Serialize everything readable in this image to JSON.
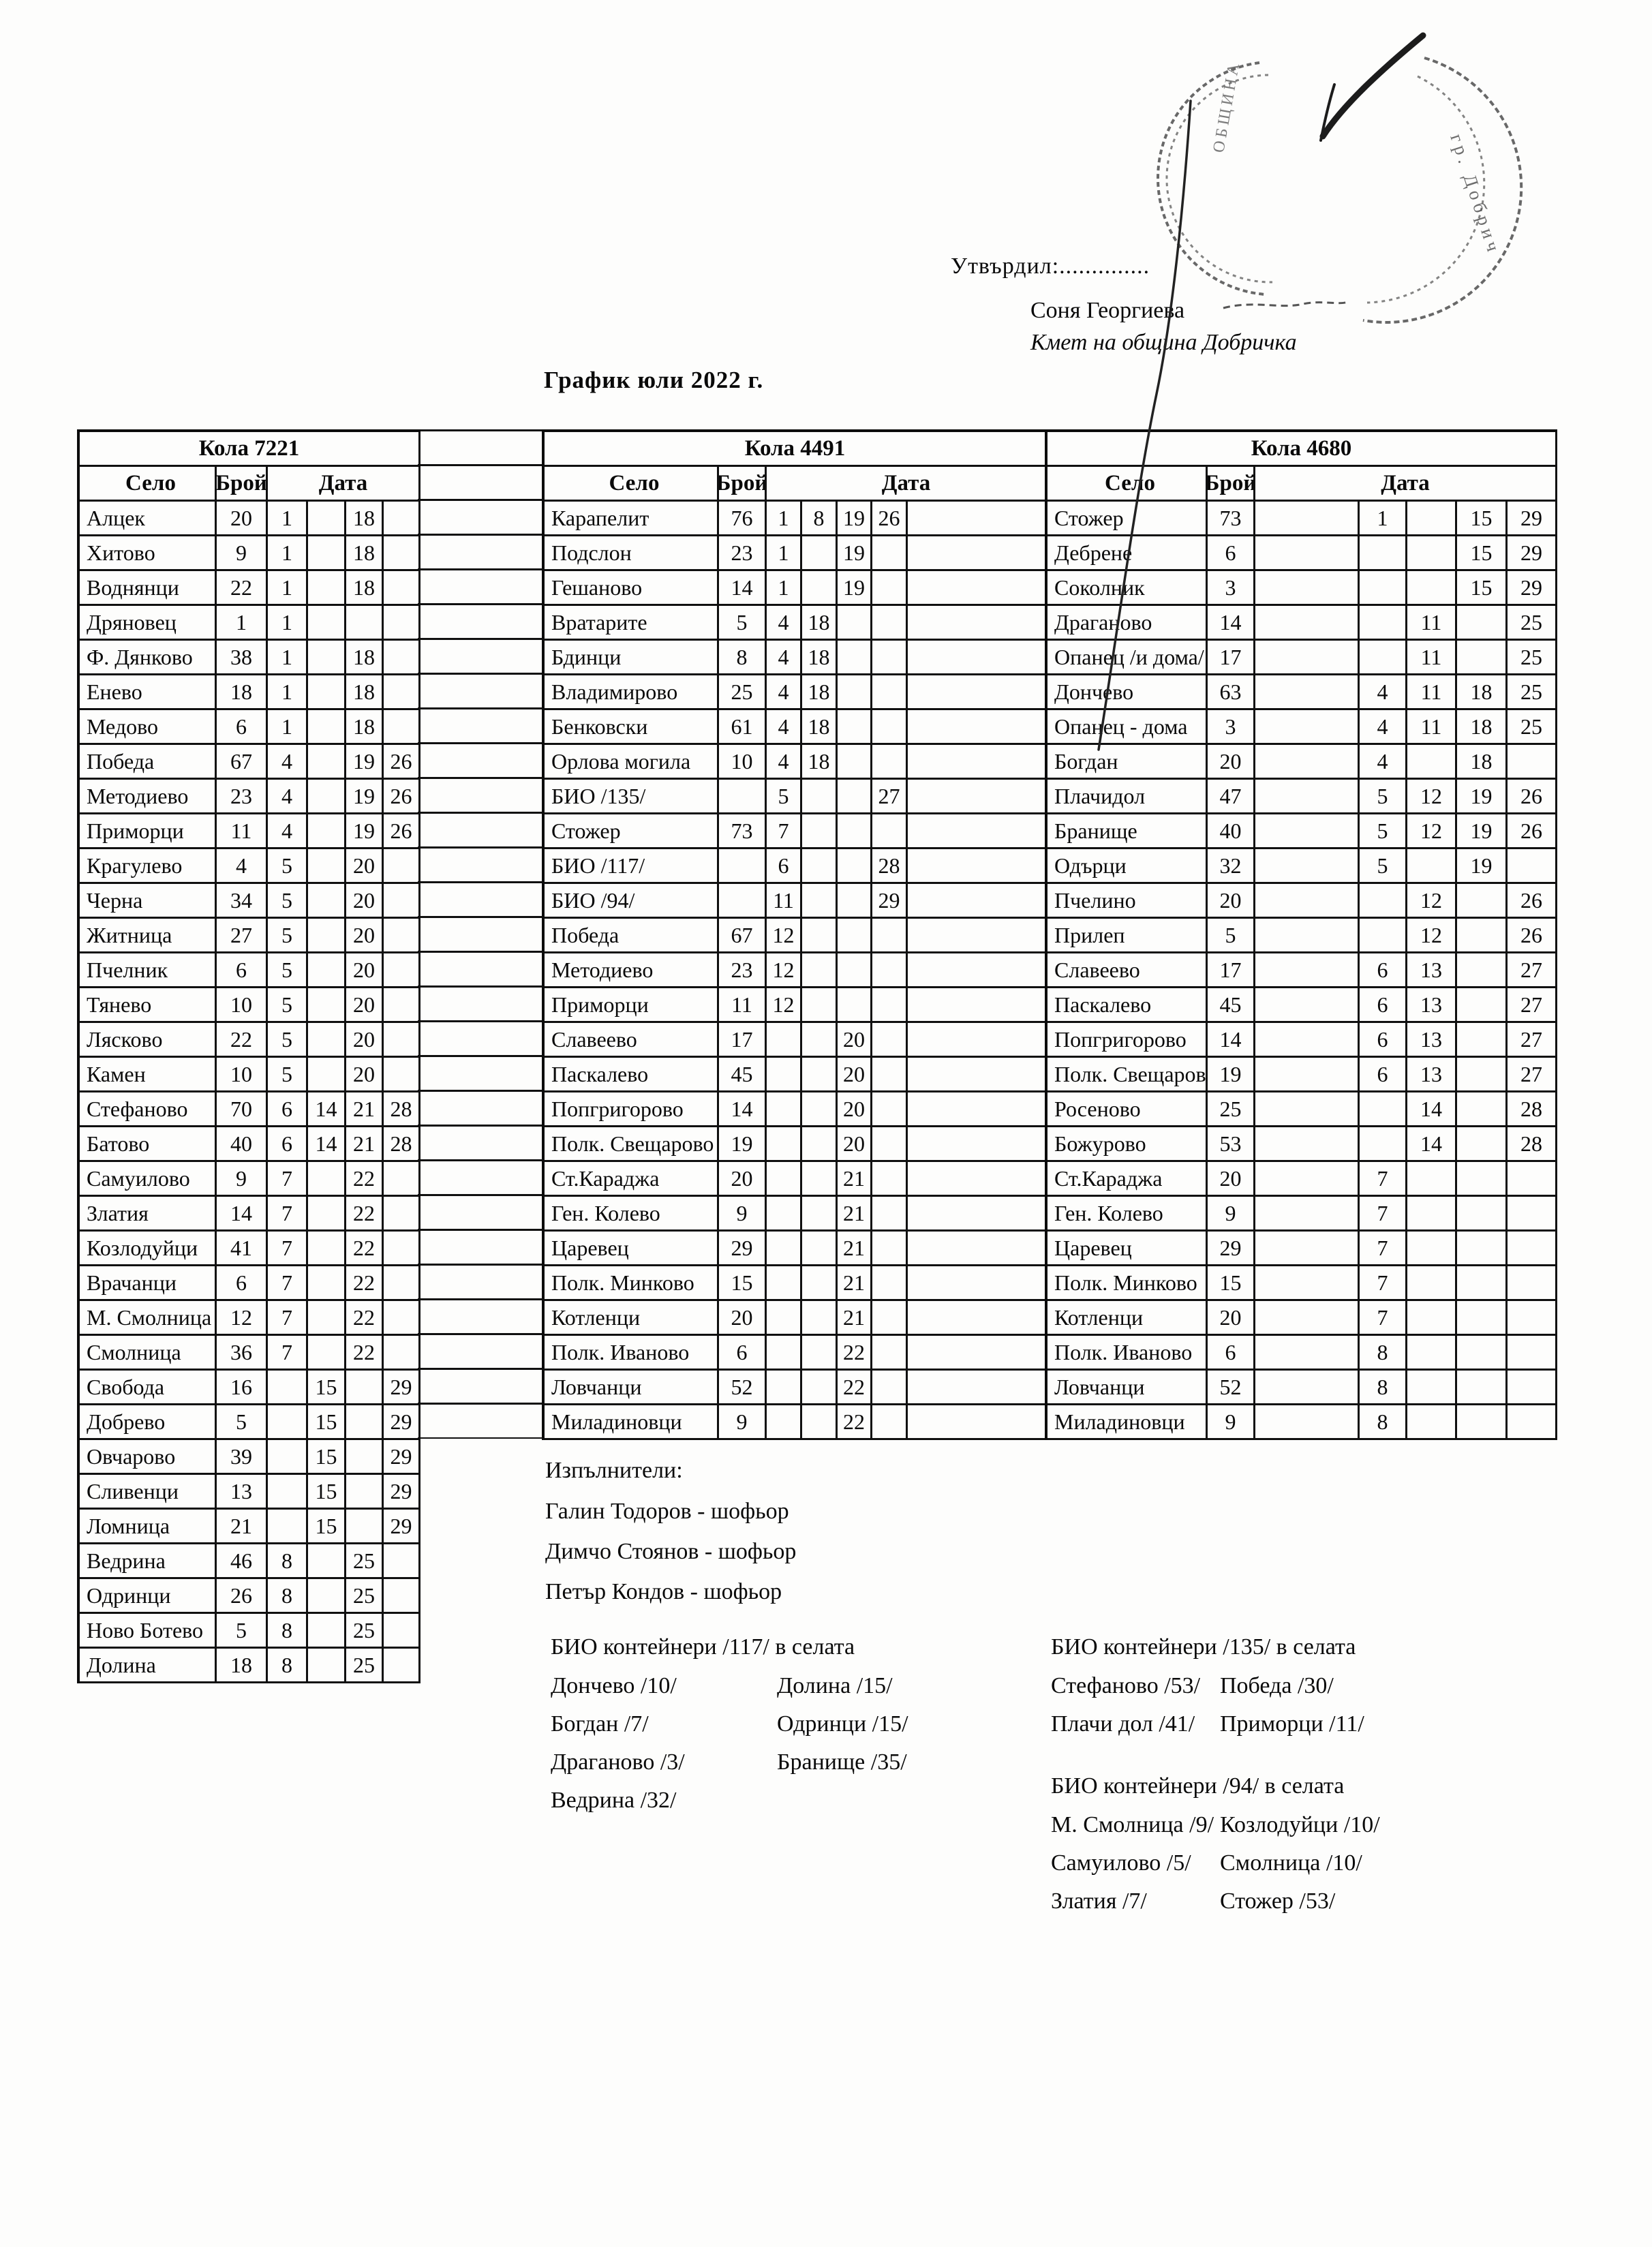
{
  "approval": {
    "approve_label": "Утвърдил:..............",
    "name": "Соня Георгиева",
    "role": "Кмет  на община Добричка",
    "stamp_text": "гр. Добрич"
  },
  "title": "График юли 2022 г.",
  "col_headers": {
    "village": "Село",
    "count": "Брой",
    "date": "Дата"
  },
  "tables": [
    {
      "car": "Кола 7221",
      "rows": [
        {
          "village": "Алцек",
          "count": "20",
          "dates": [
            "1",
            "",
            "18",
            ""
          ]
        },
        {
          "village": "Хитово",
          "count": "9",
          "dates": [
            "1",
            "",
            "18",
            ""
          ]
        },
        {
          "village": "Воднянци",
          "count": "22",
          "dates": [
            "1",
            "",
            "18",
            ""
          ]
        },
        {
          "village": "Дряновец",
          "count": "1",
          "dates": [
            "1",
            "",
            "",
            ""
          ]
        },
        {
          "village": "Ф. Дянково",
          "count": "38",
          "dates": [
            "1",
            "",
            "18",
            ""
          ]
        },
        {
          "village": "Енево",
          "count": "18",
          "dates": [
            "1",
            "",
            "18",
            ""
          ]
        },
        {
          "village": "Медово",
          "count": "6",
          "dates": [
            "1",
            "",
            "18",
            ""
          ]
        },
        {
          "village": "Победа",
          "count": "67",
          "dates": [
            "4",
            "",
            "19",
            "26"
          ]
        },
        {
          "village": "Методиево",
          "count": "23",
          "dates": [
            "4",
            "",
            "19",
            "26"
          ]
        },
        {
          "village": "Приморци",
          "count": "11",
          "dates": [
            "4",
            "",
            "19",
            "26"
          ]
        },
        {
          "village": "Крагулево",
          "count": "4",
          "dates": [
            "5",
            "",
            "20",
            ""
          ]
        },
        {
          "village": "Черна",
          "count": "34",
          "dates": [
            "5",
            "",
            "20",
            ""
          ]
        },
        {
          "village": "Житница",
          "count": "27",
          "dates": [
            "5",
            "",
            "20",
            ""
          ]
        },
        {
          "village": "Пчелник",
          "count": "6",
          "dates": [
            "5",
            "",
            "20",
            ""
          ]
        },
        {
          "village": "Тянево",
          "count": "10",
          "dates": [
            "5",
            "",
            "20",
            ""
          ]
        },
        {
          "village": "Лясково",
          "count": "22",
          "dates": [
            "5",
            "",
            "20",
            ""
          ]
        },
        {
          "village": "Камен",
          "count": "10",
          "dates": [
            "5",
            "",
            "20",
            ""
          ]
        },
        {
          "village": "Стефаново",
          "count": "70",
          "dates": [
            "6",
            "14",
            "21",
            "28"
          ]
        },
        {
          "village": "Батово",
          "count": "40",
          "dates": [
            "6",
            "14",
            "21",
            "28"
          ]
        },
        {
          "village": "Самуилово",
          "count": "9",
          "dates": [
            "7",
            "",
            "22",
            ""
          ]
        },
        {
          "village": "Златия",
          "count": "14",
          "dates": [
            "7",
            "",
            "22",
            ""
          ]
        },
        {
          "village": "Козлодуйци",
          "count": "41",
          "dates": [
            "7",
            "",
            "22",
            ""
          ]
        },
        {
          "village": "Врачанци",
          "count": "6",
          "dates": [
            "7",
            "",
            "22",
            ""
          ]
        },
        {
          "village": "М. Смолница",
          "count": "12",
          "dates": [
            "7",
            "",
            "22",
            ""
          ]
        },
        {
          "village": "Смолница",
          "count": "36",
          "dates": [
            "7",
            "",
            "22",
            ""
          ]
        },
        {
          "village": "Свобода",
          "count": "16",
          "dates": [
            "",
            "15",
            "",
            "29"
          ]
        },
        {
          "village": "Добрево",
          "count": "5",
          "dates": [
            "",
            "15",
            "",
            "29"
          ]
        },
        {
          "village": "Овчарово",
          "count": "39",
          "dates": [
            "",
            "15",
            "",
            "29"
          ]
        },
        {
          "village": "Сливенци",
          "count": "13",
          "dates": [
            "",
            "15",
            "",
            "29"
          ]
        },
        {
          "village": "Ломница",
          "count": "21",
          "dates": [
            "",
            "15",
            "",
            "29"
          ]
        },
        {
          "village": "Ведрина",
          "count": "46",
          "dates": [
            "8",
            "",
            "25",
            ""
          ]
        },
        {
          "village": "Одринци",
          "count": "26",
          "dates": [
            "8",
            "",
            "25",
            ""
          ]
        },
        {
          "village": "Ново Ботево",
          "count": "5",
          "dates": [
            "8",
            "",
            "25",
            ""
          ]
        },
        {
          "village": "Долина",
          "count": "18",
          "dates": [
            "8",
            "",
            "25",
            ""
          ]
        }
      ]
    },
    {
      "car": "Кола 4491",
      "rows": [
        {
          "village": "Карапелит",
          "count": "76",
          "dates": [
            "1",
            "8",
            "19",
            "26"
          ]
        },
        {
          "village": "Подслон",
          "count": "23",
          "dates": [
            "1",
            "",
            "19",
            ""
          ]
        },
        {
          "village": "Гешаново",
          "count": "14",
          "dates": [
            "1",
            "",
            "19",
            ""
          ]
        },
        {
          "village": "Вратарите",
          "count": "5",
          "dates": [
            "4",
            "18",
            "",
            ""
          ]
        },
        {
          "village": "Бдинци",
          "count": "8",
          "dates": [
            "4",
            "18",
            "",
            ""
          ]
        },
        {
          "village": "Владимирово",
          "count": "25",
          "dates": [
            "4",
            "18",
            "",
            ""
          ]
        },
        {
          "village": "Бенковски",
          "count": "61",
          "dates": [
            "4",
            "18",
            "",
            ""
          ]
        },
        {
          "village": "Орлова могила",
          "count": "10",
          "dates": [
            "4",
            "18",
            "",
            ""
          ]
        },
        {
          "village": "БИО /135/",
          "count": "",
          "dates": [
            "5",
            "",
            "",
            "27"
          ]
        },
        {
          "village": "Стожер",
          "count": "73",
          "dates": [
            "7",
            "",
            "",
            ""
          ]
        },
        {
          "village": "БИО /117/",
          "count": "",
          "dates": [
            "6",
            "",
            "",
            "28"
          ]
        },
        {
          "village": "БИО /94/",
          "count": "",
          "dates": [
            "11",
            "",
            "",
            "29"
          ]
        },
        {
          "village": "Победа",
          "count": "67",
          "dates": [
            "12",
            "",
            "",
            ""
          ]
        },
        {
          "village": "Методиево",
          "count": "23",
          "dates": [
            "12",
            "",
            "",
            ""
          ]
        },
        {
          "village": "Приморци",
          "count": "11",
          "dates": [
            "12",
            "",
            "",
            ""
          ]
        },
        {
          "village": "Славеево",
          "count": "17",
          "dates": [
            "",
            "",
            "20",
            ""
          ]
        },
        {
          "village": "Паскалево",
          "count": "45",
          "dates": [
            "",
            "",
            "20",
            ""
          ]
        },
        {
          "village": "Попгригорово",
          "count": "14",
          "dates": [
            "",
            "",
            "20",
            ""
          ]
        },
        {
          "village": "Полк. Свещарово",
          "count": "19",
          "dates": [
            "",
            "",
            "20",
            ""
          ]
        },
        {
          "village": "Ст.Караджа",
          "count": "20",
          "dates": [
            "",
            "",
            "21",
            ""
          ]
        },
        {
          "village": "Ген. Колево",
          "count": "9",
          "dates": [
            "",
            "",
            "21",
            ""
          ]
        },
        {
          "village": "Царевец",
          "count": "29",
          "dates": [
            "",
            "",
            "21",
            ""
          ]
        },
        {
          "village": "Полк. Минково",
          "count": "15",
          "dates": [
            "",
            "",
            "21",
            ""
          ]
        },
        {
          "village": "Котленци",
          "count": "20",
          "dates": [
            "",
            "",
            "21",
            ""
          ]
        },
        {
          "village": "Полк. Иваново",
          "count": "6",
          "dates": [
            "",
            "",
            "22",
            ""
          ]
        },
        {
          "village": "Ловчанци",
          "count": "52",
          "dates": [
            "",
            "",
            "22",
            ""
          ]
        },
        {
          "village": "Миладиновци",
          "count": "9",
          "dates": [
            "",
            "",
            "22",
            ""
          ]
        }
      ]
    },
    {
      "car": "Кола 4680",
      "rows": [
        {
          "village": "Стожер",
          "count": "73",
          "dates": [
            "1",
            "",
            "15",
            "29"
          ]
        },
        {
          "village": "Дебрене",
          "count": "6",
          "dates": [
            "",
            "",
            "15",
            "29"
          ]
        },
        {
          "village": "Соколник",
          "count": "3",
          "dates": [
            "",
            "",
            "15",
            "29"
          ]
        },
        {
          "village": "Драганово",
          "count": "14",
          "dates": [
            "",
            "11",
            "",
            "25"
          ]
        },
        {
          "village": "Опанец /и дома/",
          "count": "17",
          "dates": [
            "",
            "11",
            "",
            "25"
          ]
        },
        {
          "village": "Дончево",
          "count": "63",
          "dates": [
            "4",
            "11",
            "18",
            "25"
          ]
        },
        {
          "village": "Опанец - дома",
          "count": "3",
          "dates": [
            "4",
            "11",
            "18",
            "25"
          ]
        },
        {
          "village": "Богдан",
          "count": "20",
          "dates": [
            "4",
            "",
            "18",
            ""
          ]
        },
        {
          "village": "Плачидол",
          "count": "47",
          "dates": [
            "5",
            "12",
            "19",
            "26"
          ]
        },
        {
          "village": "Бранище",
          "count": "40",
          "dates": [
            "5",
            "12",
            "19",
            "26"
          ]
        },
        {
          "village": "Одърци",
          "count": "32",
          "dates": [
            "5",
            "",
            "19",
            ""
          ]
        },
        {
          "village": "Пчелино",
          "count": "20",
          "dates": [
            "",
            "12",
            "",
            "26"
          ]
        },
        {
          "village": "Прилеп",
          "count": "5",
          "dates": [
            "",
            "12",
            "",
            "26"
          ]
        },
        {
          "village": "Славеево",
          "count": "17",
          "dates": [
            "6",
            "13",
            "",
            "27"
          ]
        },
        {
          "village": "Паскалево",
          "count": "45",
          "dates": [
            "6",
            "13",
            "",
            "27"
          ]
        },
        {
          "village": "Попгригорово",
          "count": "14",
          "dates": [
            "6",
            "13",
            "",
            "27"
          ]
        },
        {
          "village": "Полк. Свещарово",
          "count": "19",
          "dates": [
            "6",
            "13",
            "",
            "27"
          ]
        },
        {
          "village": "Росеново",
          "count": "25",
          "dates": [
            "",
            "14",
            "",
            "28"
          ]
        },
        {
          "village": "Божурово",
          "count": "53",
          "dates": [
            "",
            "14",
            "",
            "28"
          ]
        },
        {
          "village": "Ст.Караджа",
          "count": "20",
          "dates": [
            "7",
            "",
            "",
            ""
          ]
        },
        {
          "village": "Ген. Колево",
          "count": "9",
          "dates": [
            "7",
            "",
            "",
            ""
          ]
        },
        {
          "village": "Царевец",
          "count": "29",
          "dates": [
            "7",
            "",
            "",
            ""
          ]
        },
        {
          "village": "Полк. Минково",
          "count": "15",
          "dates": [
            "7",
            "",
            "",
            ""
          ]
        },
        {
          "village": "Котленци",
          "count": "20",
          "dates": [
            "7",
            "",
            "",
            ""
          ]
        },
        {
          "village": "Полк. Иваново",
          "count": "6",
          "dates": [
            "8",
            "",
            "",
            ""
          ]
        },
        {
          "village": "Ловчанци",
          "count": "52",
          "dates": [
            "8",
            "",
            "",
            ""
          ]
        },
        {
          "village": "Миладиновци",
          "count": "9",
          "dates": [
            "8",
            "",
            "",
            ""
          ]
        }
      ]
    }
  ],
  "executors": {
    "heading": "Изпълнители:",
    "names": [
      "Галин Тодоров - шофьор",
      "Димчо Стоянов - шофьор",
      "Петър Кондов - шофьор"
    ]
  },
  "bio_sections": [
    {
      "heading": "БИО контейнери /117/ в селата",
      "left": [
        "Дончево /10/",
        "Богдан /7/",
        "Драганово /3/",
        "Ведрина /32/"
      ],
      "right": [
        "Долина /15/",
        "Одринци /15/",
        "Бранище /35/"
      ]
    },
    {
      "heading": "БИО контейнери /135/ в селата",
      "left": [
        "Стефаново /53/",
        "Плачи дол /41/"
      ],
      "right": [
        "Победа /30/",
        "Приморци /11/"
      ]
    },
    {
      "heading": "БИО контейнери /94/ в селата",
      "left": [
        "М. Смолница /9/",
        "Самуилово /5/",
        "Златия /7/"
      ],
      "right": [
        "Козлодуйци /10/",
        "Смолница /10/",
        "Стожер /53/"
      ]
    }
  ],
  "ink_color": "#1c1c1c",
  "stamp_color": "#4e4e4e"
}
